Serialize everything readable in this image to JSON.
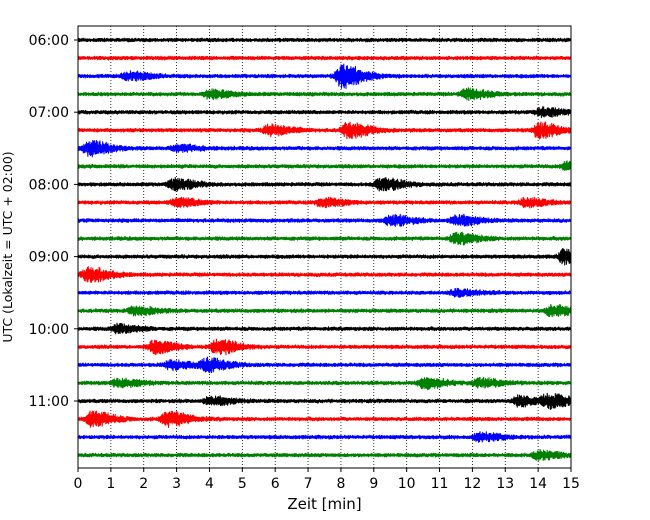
{
  "chart_data": {
    "type": "line",
    "title": "",
    "xlabel": "Zeit  [min]",
    "ylabel": "UTC (Lokalzeit = UTC + 02:00)",
    "xlim": [
      0,
      15
    ],
    "x_ticks": [
      "0",
      "1",
      "2",
      "3",
      "4",
      "5",
      "6",
      "7",
      "8",
      "9",
      "10",
      "11",
      "12",
      "13",
      "14",
      "15"
    ],
    "y_ticks": [
      "06:00",
      "07:00",
      "08:00",
      "09:00",
      "10:00",
      "11:00"
    ],
    "grid": "vertical-dotted",
    "trace_colors": [
      "#000000",
      "#ff0000",
      "#0000ff",
      "#008000"
    ],
    "trace_minutes": 15,
    "series": [
      {
        "start": "06:00",
        "color": "#000000",
        "events": []
      },
      {
        "start": "06:15",
        "color": "#ff0000",
        "events": []
      },
      {
        "start": "06:30",
        "color": "#0000ff",
        "events": [
          {
            "t": 8.0,
            "amp": 11
          },
          {
            "t": 1.5,
            "amp": 4
          }
        ]
      },
      {
        "start": "06:45",
        "color": "#008000",
        "events": [
          {
            "t": 4.0,
            "amp": 4
          },
          {
            "t": 11.8,
            "amp": 5
          }
        ]
      },
      {
        "start": "07:00",
        "color": "#000000",
        "events": [
          {
            "t": 14.1,
            "amp": 4
          }
        ]
      },
      {
        "start": "07:15",
        "color": "#ff0000",
        "events": [
          {
            "t": 5.8,
            "amp": 5
          },
          {
            "t": 8.2,
            "amp": 7
          },
          {
            "t": 14.0,
            "amp": 7
          }
        ]
      },
      {
        "start": "07:30",
        "color": "#0000ff",
        "events": [
          {
            "t": 0.3,
            "amp": 7
          },
          {
            "t": 3.0,
            "amp": 3
          }
        ]
      },
      {
        "start": "07:45",
        "color": "#008000",
        "events": [
          {
            "t": 14.9,
            "amp": 5
          }
        ]
      },
      {
        "start": "08:00",
        "color": "#000000",
        "events": [
          {
            "t": 2.9,
            "amp": 5
          },
          {
            "t": 9.2,
            "amp": 6
          }
        ]
      },
      {
        "start": "08:15",
        "color": "#ff0000",
        "events": [
          {
            "t": 3.0,
            "amp": 4
          },
          {
            "t": 7.4,
            "amp": 4
          },
          {
            "t": 13.6,
            "amp": 4
          }
        ]
      },
      {
        "start": "08:30",
        "color": "#0000ff",
        "events": [
          {
            "t": 9.5,
            "amp": 5
          },
          {
            "t": 11.5,
            "amp": 5
          }
        ]
      },
      {
        "start": "08:45",
        "color": "#008000",
        "events": [
          {
            "t": 11.5,
            "amp": 5
          }
        ]
      },
      {
        "start": "09:00",
        "color": "#000000",
        "events": [
          {
            "t": 14.8,
            "amp": 7
          }
        ]
      },
      {
        "start": "09:15",
        "color": "#ff0000",
        "events": [
          {
            "t": 0.3,
            "amp": 7
          }
        ]
      },
      {
        "start": "09:30",
        "color": "#0000ff",
        "events": [
          {
            "t": 11.5,
            "amp": 3
          }
        ]
      },
      {
        "start": "09:45",
        "color": "#008000",
        "events": [
          {
            "t": 1.7,
            "amp": 4
          },
          {
            "t": 14.4,
            "amp": 5
          }
        ]
      },
      {
        "start": "10:00",
        "color": "#000000",
        "events": [
          {
            "t": 1.2,
            "amp": 4
          }
        ]
      },
      {
        "start": "10:15",
        "color": "#ff0000",
        "events": [
          {
            "t": 2.3,
            "amp": 6
          },
          {
            "t": 4.2,
            "amp": 7
          }
        ]
      },
      {
        "start": "10:30",
        "color": "#0000ff",
        "events": [
          {
            "t": 2.8,
            "amp": 4
          },
          {
            "t": 3.9,
            "amp": 6
          }
        ]
      },
      {
        "start": "10:45",
        "color": "#008000",
        "events": [
          {
            "t": 1.2,
            "amp": 4
          },
          {
            "t": 10.5,
            "amp": 5
          },
          {
            "t": 12.2,
            "amp": 4
          }
        ]
      },
      {
        "start": "11:00",
        "color": "#000000",
        "events": [
          {
            "t": 4.0,
            "amp": 4
          },
          {
            "t": 13.4,
            "amp": 5
          },
          {
            "t": 14.3,
            "amp": 6
          }
        ]
      },
      {
        "start": "11:15",
        "color": "#ff0000",
        "events": [
          {
            "t": 0.4,
            "amp": 7
          },
          {
            "t": 2.7,
            "amp": 7
          }
        ]
      },
      {
        "start": "11:30",
        "color": "#0000ff",
        "events": [
          {
            "t": 12.2,
            "amp": 4
          }
        ]
      },
      {
        "start": "11:45",
        "color": "#008000",
        "events": [
          {
            "t": 14.0,
            "amp": 4
          }
        ]
      }
    ]
  }
}
